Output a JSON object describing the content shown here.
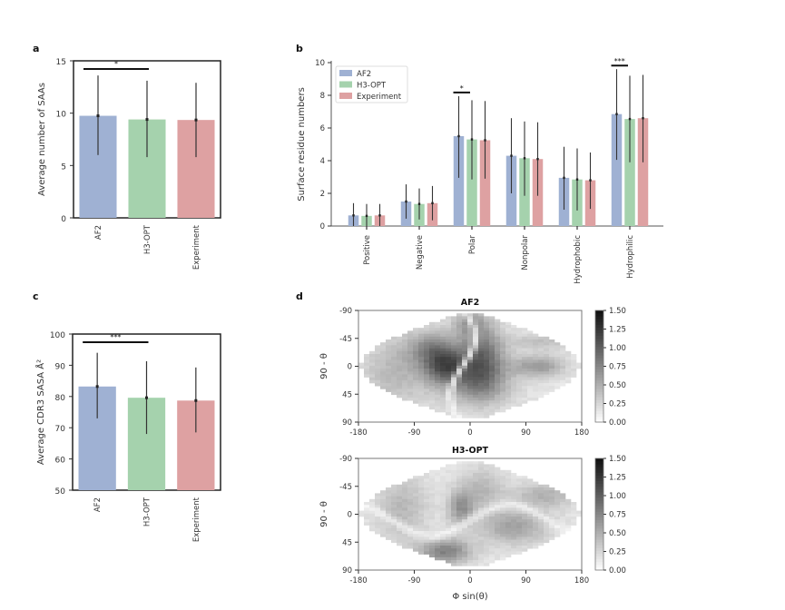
{
  "panel_labels": {
    "a": "a",
    "b": "b",
    "c": "c",
    "d": "d"
  },
  "colors": {
    "AF2": "#9fb1d3",
    "H3-OPT": "#a5d2ad",
    "Experiment": "#dea1a2",
    "err": "#333333"
  },
  "chart_data": [
    {
      "id": "a",
      "type": "bar",
      "title": "",
      "xlabel": "",
      "ylabel": "Average number of SAAs",
      "categories": [
        "AF2",
        "H3-OPT",
        "Experiment"
      ],
      "values": [
        9.75,
        9.4,
        9.35
      ],
      "error_low": [
        6.0,
        5.8,
        5.8
      ],
      "error_high": [
        13.6,
        13.1,
        12.9
      ],
      "ylim": [
        0,
        15
      ],
      "yticks": [
        0,
        5,
        10,
        15
      ],
      "significance": [
        {
          "from": "AF2",
          "to": "H3-OPT",
          "label": "*"
        }
      ]
    },
    {
      "id": "b",
      "type": "bar",
      "title": "",
      "xlabel": "",
      "ylabel": "Surface residue numbers",
      "categories": [
        "Positive",
        "Negative",
        "Polar",
        "Nonpolar",
        "Hydrophobic",
        "Hydrophilic"
      ],
      "series": [
        {
          "name": "AF2",
          "values": [
            0.65,
            1.5,
            5.5,
            4.3,
            2.95,
            6.85
          ],
          "error_low": [
            0.0,
            0.45,
            2.95,
            2.0,
            1.0,
            4.05
          ],
          "error_high": [
            1.4,
            2.55,
            7.95,
            6.6,
            4.85,
            9.6
          ]
        },
        {
          "name": "H3-OPT",
          "values": [
            0.62,
            1.35,
            5.3,
            4.15,
            2.85,
            6.55
          ],
          "error_low": [
            0.0,
            0.4,
            2.85,
            1.85,
            0.95,
            3.9
          ],
          "error_high": [
            1.35,
            2.3,
            7.7,
            6.4,
            4.75,
            9.2
          ]
        },
        {
          "name": "Experiment",
          "values": [
            0.65,
            1.4,
            5.25,
            4.1,
            2.8,
            6.6
          ],
          "error_low": [
            0.0,
            0.35,
            2.9,
            1.85,
            1.05,
            3.9
          ],
          "error_high": [
            1.35,
            2.45,
            7.65,
            6.35,
            4.5,
            9.25
          ]
        }
      ],
      "ylim": [
        0,
        10
      ],
      "yticks": [
        0,
        2,
        4,
        6,
        8,
        10
      ],
      "legend": "top-left",
      "significance": [
        {
          "category": "Polar",
          "label": "*"
        },
        {
          "category": "Hydrophilic",
          "label": "***"
        }
      ]
    },
    {
      "id": "c",
      "type": "bar",
      "title": "",
      "xlabel": "",
      "ylabel": "Average CDR3 SASA Å²",
      "categories": [
        "AF2",
        "H3-OPT",
        "Experiment"
      ],
      "values": [
        83.2,
        79.6,
        78.7
      ],
      "error_low": [
        73.0,
        68.0,
        68.5
      ],
      "error_high": [
        94.0,
        91.3,
        89.3
      ],
      "ylim": [
        50,
        100
      ],
      "yticks": [
        50,
        60,
        70,
        80,
        90,
        100
      ],
      "significance": [
        {
          "from": "AF2",
          "to": "H3-OPT",
          "label": "***"
        }
      ]
    },
    {
      "id": "d",
      "type": "heatmap",
      "subplots": [
        {
          "title": "AF2",
          "ylabel": "90 - θ",
          "xlabel": ""
        },
        {
          "title": "H3-OPT",
          "ylabel": "90 - θ",
          "xlabel": "Φ sin(θ)"
        }
      ],
      "xlim": [
        -180,
        180
      ],
      "ylim": [
        -90,
        90
      ],
      "xticks": [
        -180,
        -90,
        0,
        90,
        180
      ],
      "yticks": [
        -90,
        -45,
        0,
        45,
        90
      ],
      "colorbar": {
        "range": [
          0,
          1.5
        ],
        "ticks": [
          "0.00",
          "0.25",
          "0.50",
          "0.75",
          "1.00",
          "1.25",
          "1.50"
        ],
        "colormap": "Greys"
      }
    }
  ]
}
